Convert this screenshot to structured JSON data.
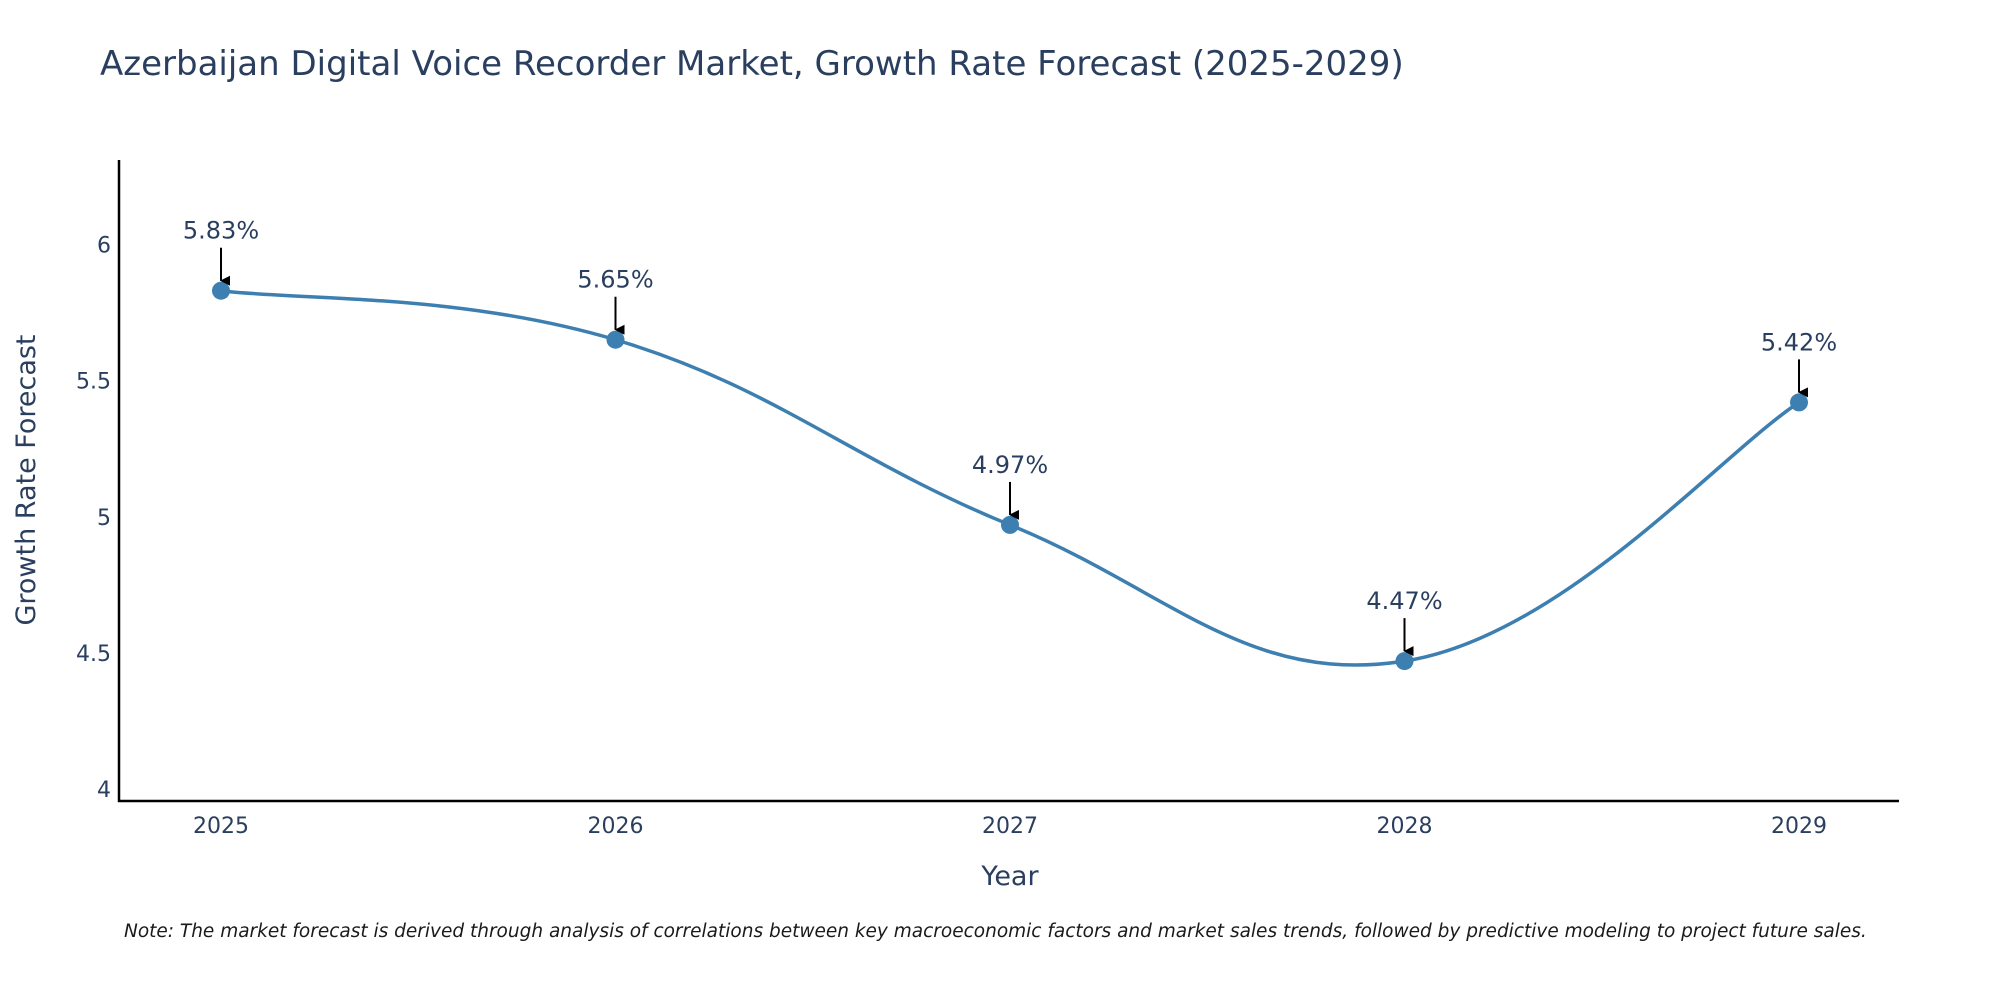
{
  "chart_data": {
    "type": "line",
    "title": "Azerbaijan Digital Voice Recorder Market, Growth Rate Forecast (2025-2029)",
    "xlabel": "Year",
    "ylabel": "Growth Rate Forecast",
    "categories": [
      "2025",
      "2026",
      "2027",
      "2028",
      "2029"
    ],
    "values": [
      5.83,
      5.65,
      4.97,
      4.47,
      5.42
    ],
    "data_labels": [
      "5.83%",
      "5.65%",
      "4.97%",
      "4.47%",
      "5.42%"
    ],
    "ylim": [
      3.96,
      6.31
    ],
    "yticks": [
      4,
      4.5,
      5,
      5.5,
      6
    ],
    "ytick_labels": [
      "4",
      "4.5",
      "5",
      "5.5",
      "6"
    ],
    "line_color": "#3d7fb0",
    "marker_color": "#3d7fb0",
    "grid": false,
    "note": "Note: The market forecast is derived through analysis of correlations between key macroeconomic factors and market sales trends, followed by predictive modeling to project future sales."
  }
}
